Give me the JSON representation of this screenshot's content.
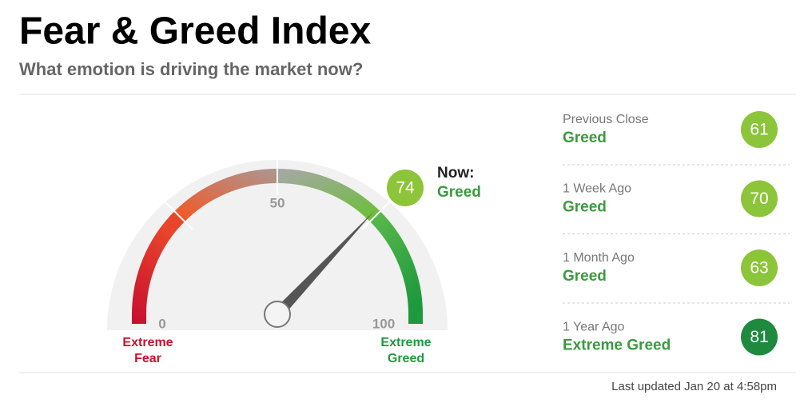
{
  "header": {
    "title": "Fear & Greed Index",
    "subtitle": "What emotion is driving the market now?"
  },
  "gauge": {
    "min": 0,
    "mid": 50,
    "max": 100,
    "value": 74,
    "now_label": "Now:",
    "status": "Greed",
    "color": "#8cc43a",
    "min_label": [
      "Extreme",
      "Fear"
    ],
    "max_label": [
      "Extreme",
      "Greed"
    ]
  },
  "history": [
    {
      "label": "Previous Close",
      "status": "Greed",
      "value": 61,
      "color": "#8cc43a"
    },
    {
      "label": "1 Week Ago",
      "status": "Greed",
      "value": 70,
      "color": "#8cc43a"
    },
    {
      "label": "1 Month Ago",
      "status": "Greed",
      "value": 63,
      "color": "#8cc43a"
    },
    {
      "label": "1 Year Ago",
      "status": "Extreme Greed",
      "value": 81,
      "color": "#1e8a3e"
    }
  ],
  "footer": {
    "updated": "Last updated Jan 20 at 4:58pm"
  }
}
